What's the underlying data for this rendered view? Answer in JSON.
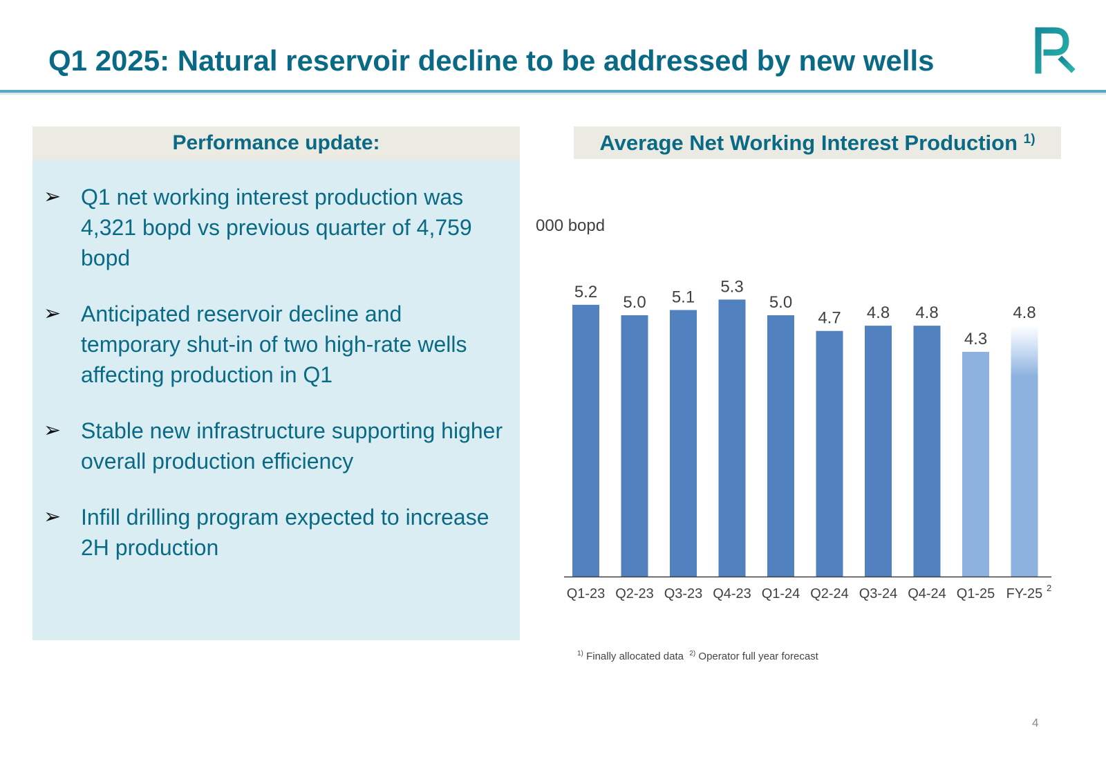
{
  "slide": {
    "title": "Q1 2025: Natural reservoir decline to be addressed by new wells",
    "logo_icon": "pj-logo-icon",
    "page_number": "4"
  },
  "left_panel": {
    "header": "Performance update:",
    "bullet_icon": "arrowhead-bullet-icon",
    "bullets": [
      "Q1 net working interest production was 4,321 bopd vs previous quarter of 4,759 bopd",
      "Anticipated reservoir decline and temporary shut-in of two high-rate wells affecting production in Q1",
      "Stable new infrastructure supporting higher overall production efficiency",
      "Infill drilling program expected to increase 2H production"
    ]
  },
  "footnotes": {
    "note1_marker": "1)",
    "note1_text": "Finally allocated data",
    "note2_marker": "2)",
    "note2_text": "Operator full year forecast"
  },
  "colors": {
    "title": "#0a6a85",
    "bar_actual": "#5281bf",
    "bar_current": "#8eb2e0",
    "panel_bg": "#daedf3",
    "header_bg": "#ecebe3"
  },
  "chart_data": {
    "type": "bar",
    "title": "Average Net Working Interest Production",
    "title_superscript": "1)",
    "ylabel": "000 bopd",
    "xlabel": "",
    "grid": false,
    "legend": "none",
    "ylim": [
      0,
      5.5
    ],
    "categories": [
      "Q1-23",
      "Q2-23",
      "Q3-23",
      "Q4-23",
      "Q1-24",
      "Q2-24",
      "Q3-24",
      "Q4-24",
      "Q1-25",
      "FY-25"
    ],
    "category_superscripts": [
      "",
      "",
      "",
      "",
      "",
      "",
      "",
      "",
      "",
      "2"
    ],
    "values": [
      5.2,
      5.0,
      5.1,
      5.3,
      5.0,
      4.7,
      4.8,
      4.8,
      4.3,
      4.8
    ],
    "value_labels": [
      "5.2",
      "5.0",
      "5.1",
      "5.3",
      "5.0",
      "4.7",
      "4.8",
      "4.8",
      "4.3",
      "4.8"
    ],
    "bar_styles": [
      "actual",
      "actual",
      "actual",
      "actual",
      "actual",
      "actual",
      "actual",
      "actual",
      "current",
      "forecast"
    ]
  }
}
